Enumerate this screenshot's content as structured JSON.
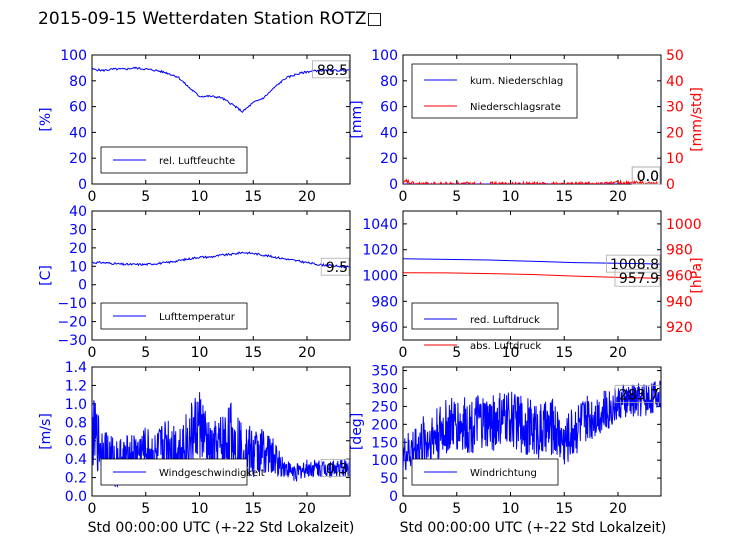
{
  "title": "2015-09-15 Wetterdaten Station ROTZ□",
  "colors": {
    "primary": "#0000ff",
    "secondary": "#ff0000",
    "text": "#000000"
  },
  "xlabel": "Std 00:00:00 UTC (+-22 Std Lokalzeit)",
  "chart_data": [
    {
      "type": "line",
      "panel": "top-left",
      "xlim": [
        0,
        24
      ],
      "xticks": [
        0,
        5,
        10,
        15,
        20
      ],
      "ylim": [
        0,
        100
      ],
      "yticks": [
        0,
        20,
        40,
        60,
        80,
        100
      ],
      "ylabel": "[%]",
      "legend_placement": "lower-left",
      "last_value_label": "88.5",
      "series": [
        {
          "name": "rel. Luftfeuchte",
          "color": "#0000ff",
          "axis": "left",
          "x": [
            0,
            1,
            2,
            3,
            4,
            5,
            6,
            7,
            8,
            9,
            10,
            11,
            12,
            13,
            14,
            15,
            16,
            17,
            18,
            19,
            20,
            21,
            22,
            23,
            24
          ],
          "y": [
            89,
            88,
            89,
            89,
            90,
            89,
            88,
            86,
            83,
            75,
            68,
            68,
            67,
            62,
            56,
            63,
            67,
            75,
            82,
            85,
            87,
            88,
            88,
            88,
            88.5
          ]
        }
      ]
    },
    {
      "type": "line",
      "panel": "top-right",
      "xlim": [
        0,
        24
      ],
      "xticks": [
        0,
        5,
        10,
        15,
        20
      ],
      "ylim": [
        0,
        100
      ],
      "yticks": [
        0,
        20,
        40,
        60,
        80,
        100
      ],
      "ylabel": "[mm]",
      "y2lim": [
        0,
        50
      ],
      "y2ticks": [
        0,
        10,
        20,
        30,
        40,
        50
      ],
      "y2label": "[mm/std]",
      "legend_placement": "upper-left",
      "last_value_labels": [
        "0.0",
        "0.0"
      ],
      "series": [
        {
          "name": "kum. Niederschlag",
          "color": "#0000ff",
          "axis": "left",
          "x": [
            0,
            24
          ],
          "y": [
            0,
            0
          ]
        },
        {
          "name": "Niederschlagsrate",
          "color": "#ff0000",
          "axis": "right",
          "x": [
            0,
            0.3,
            0.6,
            1,
            2,
            5,
            10,
            15,
            19,
            19.2,
            24
          ],
          "y": [
            0,
            1.2,
            0.5,
            0,
            0,
            0,
            0,
            0,
            0,
            0.6,
            0
          ]
        }
      ]
    },
    {
      "type": "line",
      "panel": "middle-left",
      "xlim": [
        0,
        24
      ],
      "xticks": [
        0,
        5,
        10,
        15,
        20
      ],
      "ylim": [
        -30,
        40
      ],
      "yticks": [
        -30,
        -20,
        -10,
        0,
        10,
        20,
        30,
        40
      ],
      "ylabel": "[C]",
      "legend_placement": "lower-left",
      "last_value_label": "9.5",
      "series": [
        {
          "name": "Lufttemperatur",
          "color": "#0000ff",
          "axis": "left",
          "x": [
            0,
            1,
            2,
            3,
            4,
            5,
            6,
            7,
            8,
            9,
            10,
            11,
            12,
            13,
            14,
            15,
            16,
            17,
            18,
            19,
            20,
            21,
            22,
            23,
            24
          ],
          "y": [
            12,
            12,
            11.5,
            11,
            11,
            11,
            11.5,
            12,
            13,
            14,
            15,
            15,
            16,
            16.5,
            17.5,
            17,
            16,
            15,
            14,
            13,
            12,
            11,
            10.5,
            10,
            9.5
          ]
        }
      ]
    },
    {
      "type": "line",
      "panel": "middle-right",
      "xlim": [
        0,
        24
      ],
      "xticks": [
        0,
        5,
        10,
        15,
        20
      ],
      "ylim": [
        950,
        1050
      ],
      "yticks": [
        960,
        980,
        1000,
        1020,
        1040
      ],
      "ylabel": "",
      "y2lim": [
        910,
        1010
      ],
      "y2ticks": [
        920,
        940,
        960,
        980,
        1000
      ],
      "y2label": "[hPa]",
      "legend_placement": "lower-left",
      "last_value_labels": [
        "1008.8",
        "957.9"
      ],
      "series": [
        {
          "name": "red. Luftdruck",
          "color": "#0000ff",
          "axis": "left",
          "x": [
            0,
            4,
            8,
            12,
            16,
            20,
            24
          ],
          "y": [
            1013,
            1012.5,
            1012,
            1011,
            1010,
            1009.5,
            1008.8
          ]
        },
        {
          "name": "abs. Luftdruck",
          "color": "#ff0000",
          "axis": "right",
          "x": [
            0,
            4,
            8,
            12,
            16,
            20,
            24
          ],
          "y": [
            962.2,
            962,
            961.5,
            960.8,
            959.5,
            958.5,
            957.9
          ]
        }
      ]
    },
    {
      "type": "line",
      "panel": "bottom-left",
      "xlim": [
        0,
        24
      ],
      "xticks": [
        0,
        5,
        10,
        15,
        20
      ],
      "ylim": [
        0,
        1.4
      ],
      "yticks": [
        0.0,
        0.2,
        0.4,
        0.6,
        0.8,
        1.0,
        1.2,
        1.4
      ],
      "ylabel": "[m/s]",
      "legend_placement": "lower-left",
      "last_value_label": "0.3",
      "series": [
        {
          "name": "Windgeschwindigkeit",
          "color": "#0000ff",
          "axis": "left",
          "x": [
            0,
            1,
            2,
            3,
            4,
            5,
            6,
            7,
            8,
            9,
            10,
            11,
            12,
            13,
            14,
            15,
            16,
            17,
            18,
            19,
            20,
            21,
            22,
            23,
            24
          ],
          "y": [
            0.7,
            0.5,
            0.35,
            0.4,
            0.45,
            0.5,
            0.4,
            0.6,
            0.5,
            0.6,
            0.8,
            0.45,
            0.55,
            0.65,
            0.5,
            0.45,
            0.5,
            0.4,
            0.3,
            0.25,
            0.3,
            0.3,
            0.3,
            0.3,
            0.3
          ],
          "amplitude": [
            0.4,
            0.3,
            0.3,
            0.25,
            0.25,
            0.25,
            0.3,
            0.3,
            0.3,
            0.35,
            0.4,
            0.3,
            0.35,
            0.4,
            0.3,
            0.3,
            0.25,
            0.2,
            0.1,
            0.1,
            0.1,
            0.1,
            0.1,
            0.1,
            0.1
          ]
        }
      ]
    },
    {
      "type": "line",
      "panel": "bottom-right",
      "xlim": [
        0,
        24
      ],
      "xticks": [
        0,
        5,
        10,
        15,
        20
      ],
      "ylim": [
        0,
        360
      ],
      "yticks": [
        0,
        50,
        100,
        150,
        200,
        250,
        300,
        350
      ],
      "ylabel": "[deg]",
      "legend_placement": "lower-left",
      "last_value_label": "283.7",
      "series": [
        {
          "name": "Windrichtung",
          "color": "#0000ff",
          "axis": "left",
          "x": [
            0,
            1,
            2,
            3,
            4,
            5,
            6,
            7,
            8,
            9,
            10,
            11,
            12,
            13,
            14,
            15,
            16,
            17,
            18,
            19,
            20,
            21,
            22,
            23,
            24
          ],
          "y": [
            110,
            130,
            150,
            170,
            190,
            200,
            195,
            205,
            200,
            210,
            220,
            200,
            190,
            180,
            195,
            150,
            190,
            210,
            230,
            240,
            260,
            265,
            270,
            275,
            283.7
          ],
          "amplitude": [
            50,
            70,
            80,
            80,
            80,
            80,
            80,
            80,
            80,
            80,
            80,
            80,
            80,
            80,
            80,
            70,
            80,
            70,
            60,
            60,
            50,
            50,
            50,
            50,
            40
          ]
        }
      ]
    }
  ]
}
